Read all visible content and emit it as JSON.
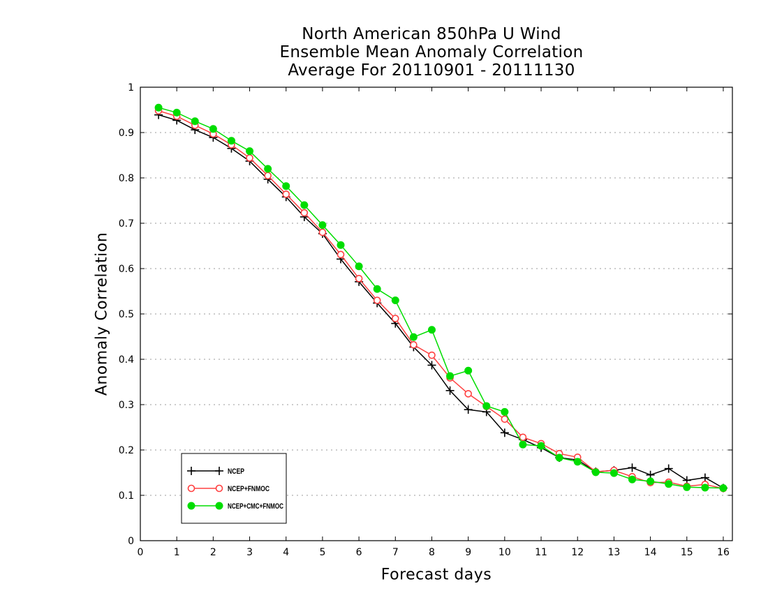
{
  "chart_data": {
    "type": "line",
    "title": [
      "North American 850hPa U Wind",
      "Ensemble Mean Anomaly Correlation",
      "Average For 20110901 - 20111130"
    ],
    "xlabel": "Forecast days",
    "ylabel": "Anomaly Correlation",
    "xlim": [
      0,
      16.25
    ],
    "ylim": [
      0,
      1
    ],
    "xticks": [
      0,
      1,
      2,
      3,
      4,
      5,
      6,
      7,
      8,
      9,
      10,
      11,
      12,
      13,
      14,
      15,
      16
    ],
    "yticks": [
      0,
      0.1,
      0.2,
      0.3,
      0.4,
      0.5,
      0.6,
      0.7,
      0.8,
      0.9,
      1
    ],
    "grid": "horizontal dotted",
    "legend_position": "bottom-left",
    "x": [
      0.5,
      1.0,
      1.5,
      2.0,
      2.5,
      3.0,
      3.5,
      4.0,
      4.5,
      5.0,
      5.5,
      6.0,
      6.5,
      7.0,
      7.5,
      8.0,
      8.5,
      9.0,
      9.5,
      10.0,
      10.5,
      11.0,
      11.5,
      12.0,
      12.5,
      13.0,
      13.5,
      14.0,
      14.5,
      15.0,
      15.5,
      16.0
    ],
    "series": [
      {
        "name": "NCEP",
        "color": "#000000",
        "marker": "plus",
        "values": [
          0.939,
          0.927,
          0.906,
          0.889,
          0.865,
          0.837,
          0.797,
          0.758,
          0.714,
          0.677,
          0.621,
          0.571,
          0.524,
          0.479,
          0.427,
          0.387,
          0.331,
          0.289,
          0.284,
          0.238,
          0.223,
          0.205,
          0.183,
          0.178,
          0.152,
          0.155,
          0.161,
          0.145,
          0.159,
          0.133,
          0.139,
          0.116
        ]
      },
      {
        "name": "NCEP+FNMOC",
        "color": "#ff4040",
        "marker": "open-circle",
        "values": [
          0.948,
          0.936,
          0.916,
          0.897,
          0.873,
          0.844,
          0.805,
          0.764,
          0.723,
          0.68,
          0.631,
          0.578,
          0.53,
          0.49,
          0.432,
          0.409,
          0.359,
          0.324,
          0.296,
          0.268,
          0.228,
          0.214,
          0.192,
          0.184,
          0.152,
          0.155,
          0.141,
          0.128,
          0.129,
          0.12,
          0.124,
          0.115
        ]
      },
      {
        "name": "NCEP+CMC+FNMOC",
        "color": "#00dd00",
        "marker": "filled-circle",
        "values": [
          0.955,
          0.944,
          0.925,
          0.908,
          0.882,
          0.859,
          0.82,
          0.782,
          0.74,
          0.696,
          0.652,
          0.605,
          0.555,
          0.53,
          0.449,
          0.465,
          0.363,
          0.375,
          0.297,
          0.284,
          0.212,
          0.209,
          0.183,
          0.174,
          0.151,
          0.149,
          0.135,
          0.131,
          0.125,
          0.118,
          0.117,
          0.116
        ]
      }
    ]
  }
}
